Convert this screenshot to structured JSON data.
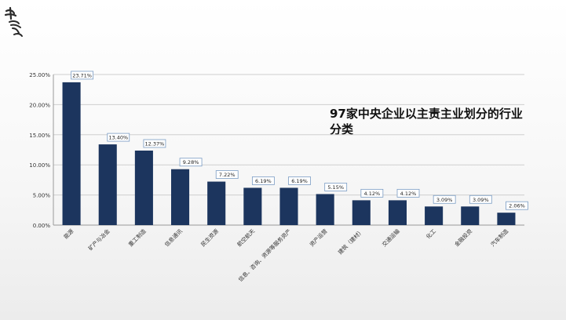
{
  "logo": {
    "text": "中智"
  },
  "chart_data": {
    "type": "bar",
    "title": "97家中央企业以主责主业划分的行业分类",
    "xlabel": "",
    "ylabel": "",
    "ylim": [
      0,
      0.25
    ],
    "y_ticks": [
      "0.00%",
      "5.00%",
      "10.00%",
      "15.00%",
      "20.00%",
      "25.00%"
    ],
    "grid": true,
    "categories": [
      "能源",
      "矿产与冶金",
      "重工制造",
      "信息通讯",
      "民生资源",
      "航空航天",
      "信息、咨询、资源等服务资产",
      "资产运营",
      "建筑（建材）",
      "交通运输",
      "化工",
      "金融投资",
      "汽车制造"
    ],
    "values": [
      0.2371,
      0.134,
      0.1237,
      0.0928,
      0.0722,
      0.0619,
      0.0619,
      0.0515,
      0.0412,
      0.0412,
      0.0309,
      0.0309,
      0.0206
    ],
    "data_labels": [
      "23.71%",
      "13.40%",
      "12.37%",
      "9.28%",
      "7.22%",
      "6.19%",
      "6.19%",
      "5.15%",
      "4.12%",
      "4.12%",
      "3.09%",
      "3.09%",
      "2.06%"
    ],
    "colors": {
      "bar": "#1c355e",
      "grid": "#cfcfcf",
      "label_border": "#7a9cc4"
    }
  }
}
